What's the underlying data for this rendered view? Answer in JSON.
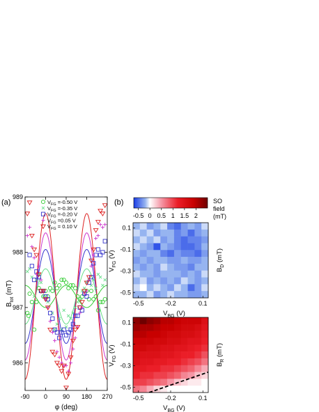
{
  "panel_labels": [
    "(a)",
    "(b)"
  ],
  "chart_data": [
    {
      "type": "scatter",
      "panel": "(a)",
      "xlabel": "φ (deg)",
      "ylabel": "B",
      "ylabel_sub": "tot",
      "ylabel_unit": " (mT)",
      "xlim": [
        -90,
        270
      ],
      "ylim": [
        985.5,
        989
      ],
      "xticks": [
        -90,
        0,
        90,
        180,
        270
      ],
      "yticks": [
        986,
        987,
        988,
        989
      ],
      "legend_position": "top-right",
      "series": [
        {
          "name_main": "V",
          "name_sub": "FG",
          "name_value": " =-0.50 V",
          "marker": "circle",
          "color": "#33cc33",
          "points": [
            [
              -80,
              986.9
            ],
            [
              -75,
              986.85
            ],
            [
              -70,
              987.25
            ],
            [
              -60,
              987.1
            ],
            [
              -50,
              986.6
            ],
            [
              -40,
              987.1
            ],
            [
              -30,
              987.35
            ],
            [
              -20,
              987.3
            ],
            [
              -10,
              987.2
            ],
            [
              0,
              987.3
            ],
            [
              10,
              987.2
            ],
            [
              20,
              987.35
            ],
            [
              30,
              987.3
            ],
            [
              40,
              987.45
            ],
            [
              50,
              987.35
            ],
            [
              60,
              987.4
            ],
            [
              70,
              987.5
            ],
            [
              80,
              987.5
            ],
            [
              90,
              987.45
            ],
            [
              100,
              987.35
            ],
            [
              110,
              987.4
            ],
            [
              120,
              987.4
            ],
            [
              130,
              987.35
            ],
            [
              140,
              987.2
            ],
            [
              150,
              987.15
            ],
            [
              160,
              987.2
            ],
            [
              170,
              987.25
            ],
            [
              180,
              987.3
            ],
            [
              190,
              987.15
            ],
            [
              200,
              987.3
            ],
            [
              210,
              987.15
            ],
            [
              220,
              987.2
            ],
            [
              230,
              986.95
            ],
            [
              240,
              987.1
            ],
            [
              250,
              987.1
            ],
            [
              260,
              987.15
            ]
          ],
          "fit_offset": 987.2,
          "fit_amplitude": -0.2
        },
        {
          "name_main": "V",
          "name_sub": "FG",
          "name_value": " =-0.35 V",
          "marker": "x",
          "color": "#66dd88",
          "points": [
            [
              -80,
              987.65
            ],
            [
              -70,
              987.7
            ],
            [
              -60,
              987.55
            ],
            [
              -50,
              987.2
            ],
            [
              -40,
              987.5
            ],
            [
              -30,
              987.6
            ],
            [
              -20,
              987.45
            ],
            [
              -10,
              987.2
            ],
            [
              0,
              987.15
            ],
            [
              10,
              987.1
            ],
            [
              20,
              987.3
            ],
            [
              30,
              986.9
            ],
            [
              40,
              986.6
            ],
            [
              50,
              986.7
            ],
            [
              60,
              986.8
            ],
            [
              70,
              986.6
            ],
            [
              80,
              986.95
            ],
            [
              90,
              986.65
            ],
            [
              100,
              986.85
            ],
            [
              110,
              986.8
            ],
            [
              120,
              986.9
            ],
            [
              130,
              987.0
            ],
            [
              140,
              987.1
            ],
            [
              150,
              987.15
            ],
            [
              160,
              987.3
            ],
            [
              170,
              987.35
            ],
            [
              180,
              987.45
            ],
            [
              190,
              987.5
            ],
            [
              200,
              987.4
            ],
            [
              210,
              987.5
            ],
            [
              220,
              987.35
            ],
            [
              230,
              987.6
            ],
            [
              240,
              987.55
            ],
            [
              250,
              987.4
            ],
            [
              260,
              987.5
            ]
          ],
          "fit_offset": 987.2,
          "fit_amplitude": 0.5
        },
        {
          "name_main": "V",
          "name_sub": "FG",
          "name_value": " =-0.20 V",
          "marker": "square",
          "color": "#3333cc",
          "points": [
            [
              -70,
              987.95
            ],
            [
              -60,
              987.75
            ],
            [
              -50,
              987.5
            ],
            [
              -40,
              987.65
            ],
            [
              -30,
              987.55
            ],
            [
              -20,
              987.3
            ],
            [
              -10,
              987.3
            ],
            [
              0,
              987.2
            ],
            [
              10,
              987.15
            ],
            [
              20,
              986.9
            ],
            [
              30,
              986.8
            ],
            [
              40,
              986.6
            ],
            [
              50,
              986.55
            ],
            [
              60,
              986.45
            ],
            [
              70,
              986.55
            ],
            [
              80,
              986.6
            ],
            [
              90,
              986.5
            ],
            [
              100,
              986.55
            ],
            [
              110,
              986.6
            ],
            [
              120,
              986.7
            ],
            [
              130,
              986.85
            ],
            [
              140,
              986.85
            ],
            [
              150,
              987.0
            ],
            [
              160,
              986.95
            ],
            [
              170,
              987.25
            ],
            [
              180,
              987.2
            ],
            [
              190,
              987.45
            ],
            [
              200,
              987.55
            ],
            [
              210,
              987.8
            ],
            [
              220,
              987.95
            ],
            [
              230,
              988.05
            ],
            [
              240,
              987.95
            ],
            [
              250,
              988.0
            ],
            [
              260,
              988.2
            ]
          ],
          "fit_offset": 987.2,
          "fit_amplitude": 0.85
        },
        {
          "name_main": "V",
          "name_sub": "FG",
          "name_value": " =0.05 V",
          "marker": "plus",
          "color": "#cc33cc",
          "points": [
            [
              -80,
              988.3
            ],
            [
              -70,
              988.45
            ],
            [
              -60,
              988.1
            ],
            [
              -50,
              987.9
            ],
            [
              -40,
              987.6
            ],
            [
              -30,
              987.75
            ],
            [
              -20,
              987.5
            ],
            [
              -10,
              987.3
            ],
            [
              0,
              987.15
            ],
            [
              10,
              987.0
            ],
            [
              20,
              986.75
            ],
            [
              30,
              986.55
            ],
            [
              40,
              986.4
            ],
            [
              50,
              986.2
            ],
            [
              60,
              986.1
            ],
            [
              70,
              986.0
            ],
            [
              80,
              985.95
            ],
            [
              90,
              985.95
            ],
            [
              100,
              985.85
            ],
            [
              110,
              986.0
            ],
            [
              120,
              986.25
            ],
            [
              130,
              986.45
            ],
            [
              140,
              986.65
            ],
            [
              150,
              986.9
            ],
            [
              160,
              987.0
            ],
            [
              170,
              987.25
            ],
            [
              180,
              987.3
            ],
            [
              190,
              987.5
            ],
            [
              200,
              987.75
            ],
            [
              210,
              987.95
            ],
            [
              220,
              988.25
            ],
            [
              230,
              988.3
            ],
            [
              240,
              988.5
            ],
            [
              250,
              988.45
            ],
            [
              260,
              988.5
            ]
          ],
          "fit_offset": 987.2,
          "fit_amplitude": 1.15
        },
        {
          "name_main": "V",
          "name_sub": "FG",
          "name_value": " = 0.10 V",
          "marker": "triangle-down",
          "color": "#dd2222",
          "points": [
            [
              -80,
              988.7
            ],
            [
              -70,
              988.9
            ],
            [
              -60,
              988.3
            ],
            [
              -50,
              988.05
            ],
            [
              -40,
              987.95
            ],
            [
              -30,
              987.6
            ],
            [
              -20,
              987.3
            ],
            [
              -10,
              987.3
            ],
            [
              0,
              987.15
            ],
            [
              10,
              987.0
            ],
            [
              20,
              986.6
            ],
            [
              30,
              986.2
            ],
            [
              40,
              986.15
            ],
            [
              50,
              986.0
            ],
            [
              60,
              985.95
            ],
            [
              70,
              985.85
            ],
            [
              80,
              985.95
            ],
            [
              90,
              985.55
            ],
            [
              100,
              985.8
            ],
            [
              110,
              986.1
            ],
            [
              120,
              986.4
            ],
            [
              130,
              986.6
            ],
            [
              140,
              986.65
            ],
            [
              150,
              987.0
            ],
            [
              160,
              987.1
            ],
            [
              170,
              987.3
            ],
            [
              180,
              987.45
            ],
            [
              190,
              987.55
            ],
            [
              200,
              987.85
            ],
            [
              210,
              988.05
            ],
            [
              220,
              988.4
            ],
            [
              230,
              988.55
            ],
            [
              240,
              988.75
            ],
            [
              250,
              988.7
            ],
            [
              260,
              988.85
            ]
          ],
          "fit_offset": 987.2,
          "fit_amplitude": 1.5
        }
      ]
    },
    {
      "type": "heatmap",
      "panel": "(b) top",
      "xlabel_main": "V",
      "xlabel_sub": "BG",
      "xlabel_unit": " (V)",
      "ylabel_main": "V",
      "ylabel_sub": "FG",
      "ylabel_unit": " (V)",
      "side_main": "B",
      "side_sub": "D",
      "side_unit": " (mT)",
      "xlim": [
        -0.55,
        0.15
      ],
      "ylim": [
        -0.55,
        0.15
      ],
      "xticks": [
        -0.5,
        -0.2,
        0.1
      ],
      "xtick_labels": [
        "-0.5",
        "-0.2",
        "0.1"
      ],
      "yticks": [
        0.1,
        -0.1,
        -0.3,
        -0.5
      ],
      "ytick_labels": [
        "0.1",
        "-0.1",
        "-0.3",
        "-0.5"
      ],
      "cell_values": [
        [
          -0.2,
          -0.1,
          -0.3,
          -0.2,
          -0.1,
          -0.4,
          -0.5,
          -0.3,
          -0.2,
          -0.3,
          -0.1
        ],
        [
          -0.1,
          -0.2,
          -0.1,
          -0.3,
          -0.2,
          -0.2,
          -0.4,
          -0.3,
          -0.5,
          -0.3,
          -0.2
        ],
        [
          -0.2,
          -0.1,
          -0.2,
          -0.1,
          -0.3,
          -0.2,
          -0.4,
          -0.5,
          -0.4,
          -0.4,
          -0.3
        ],
        [
          -0.1,
          -0.2,
          -0.3,
          -0.6,
          -0.2,
          -0.3,
          -0.4,
          -0.5,
          -0.5,
          -0.4,
          -0.2
        ],
        [
          -0.2,
          -0.3,
          -0.2,
          -0.2,
          -0.4,
          -0.5,
          -0.3,
          -0.4,
          -0.4,
          -0.5,
          -0.3
        ],
        [
          -0.3,
          -0.2,
          -0.3,
          -0.2,
          -0.2,
          -0.3,
          -0.3,
          -0.2,
          -0.3,
          -0.3,
          -0.2
        ],
        [
          -0.2,
          -0.3,
          -0.2,
          -0.3,
          -0.1,
          -0.2,
          -0.3,
          -0.3,
          -0.4,
          -0.2,
          -0.2
        ],
        [
          -0.1,
          -0.2,
          -0.2,
          -0.3,
          -0.2,
          -0.2,
          -0.2,
          -0.3,
          -0.2,
          -0.3,
          -0.1
        ],
        [
          -0.2,
          -0.1,
          -0.3,
          -0.2,
          -0.3,
          -0.2,
          -0.3,
          -0.1,
          -0.2,
          -0.3,
          -0.2
        ],
        [
          -0.1,
          0.0,
          -0.2,
          -0.1,
          -0.2,
          -0.3,
          -0.1,
          -0.2,
          -0.5,
          -0.3,
          -0.1
        ],
        [
          -0.2,
          -0.2,
          -0.1,
          -0.3,
          -0.2,
          -0.1,
          -0.2,
          -0.2,
          -0.3,
          -0.3,
          -0.2
        ]
      ]
    },
    {
      "type": "heatmap",
      "panel": "(b) bottom",
      "xlabel_main": "V",
      "xlabel_sub": "BG",
      "xlabel_unit": " (V)",
      "ylabel_main": "V",
      "ylabel_sub": "FG",
      "ylabel_unit": " (V)",
      "side_main": "B",
      "side_sub": "R",
      "side_unit": " (mT)",
      "xlim": [
        -0.55,
        0.15
      ],
      "ylim": [
        -0.55,
        0.15
      ],
      "xticks": [
        -0.5,
        -0.2,
        0.1
      ],
      "xtick_labels": [
        "-0.5",
        "-0.2",
        "0.1"
      ],
      "yticks": [
        0.1,
        -0.1,
        -0.3,
        -0.5
      ],
      "ytick_labels": [
        "0.1",
        "-0.1",
        "-0.3",
        "-0.5"
      ],
      "dashed_line": [
        [
          -0.4,
          -0.55
        ],
        [
          0.15,
          -0.36
        ]
      ],
      "cell_values": [
        [
          2.3,
          2.5,
          2.3,
          2.2,
          2.0,
          2.0,
          1.9,
          1.8,
          1.8,
          1.8,
          1.5
        ],
        [
          2.2,
          2.1,
          2.1,
          2.0,
          1.9,
          1.9,
          1.8,
          1.7,
          1.7,
          1.6,
          1.4
        ],
        [
          2.0,
          2.0,
          1.9,
          1.9,
          1.8,
          1.7,
          1.7,
          1.6,
          1.6,
          1.5,
          1.3
        ],
        [
          1.8,
          1.8,
          1.8,
          1.7,
          1.7,
          1.6,
          1.6,
          1.5,
          1.4,
          1.4,
          1.2
        ],
        [
          1.7,
          1.7,
          1.6,
          1.6,
          1.5,
          1.5,
          1.4,
          1.4,
          1.3,
          1.2,
          1.1
        ],
        [
          1.6,
          1.5,
          1.5,
          1.5,
          1.4,
          1.4,
          1.3,
          1.2,
          1.2,
          1.1,
          0.9
        ],
        [
          1.5,
          1.4,
          1.4,
          1.3,
          1.3,
          1.2,
          1.2,
          1.1,
          1.0,
          0.9,
          0.7
        ],
        [
          1.3,
          1.3,
          1.2,
          1.2,
          1.1,
          1.1,
          1.0,
          0.9,
          0.8,
          0.6,
          0.4
        ],
        [
          1.2,
          1.1,
          1.1,
          1.0,
          1.0,
          0.9,
          0.8,
          0.6,
          0.5,
          0.3,
          0.2
        ],
        [
          1.0,
          1.0,
          0.9,
          0.8,
          0.7,
          0.5,
          0.3,
          0.2,
          0.1,
          0.1,
          0.0
        ],
        [
          0.7,
          0.6,
          0.4,
          0.2,
          0.1,
          0.0,
          0.0,
          0.0,
          0.0,
          0.0,
          0.0
        ]
      ]
    }
  ],
  "colorbar": {
    "label_lines": [
      "SO",
      "field",
      "(mT)"
    ],
    "min": -0.7,
    "max": 2.5,
    "ticks": [
      -0.5,
      0,
      0.5,
      1,
      1.5,
      2
    ],
    "tick_labels": [
      "-0.5",
      "0",
      "0.5",
      "1",
      "1.5",
      "2"
    ]
  }
}
